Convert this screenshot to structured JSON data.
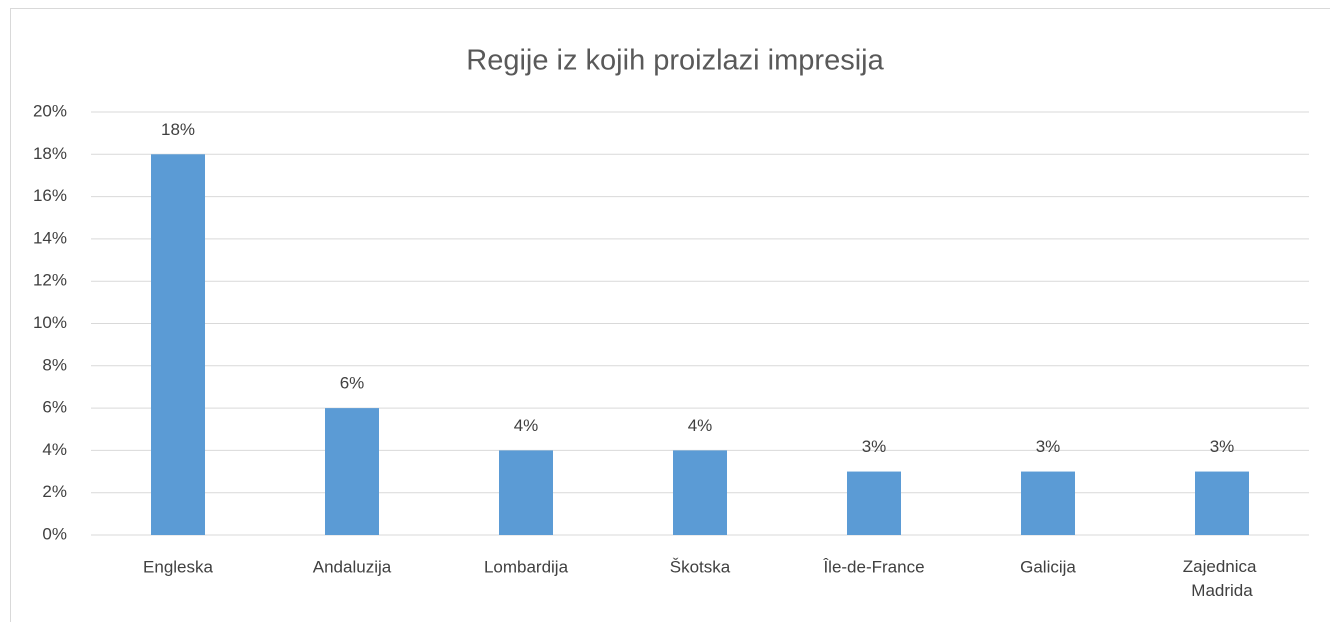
{
  "chart_data": {
    "type": "bar",
    "title": "Regije iz kojih proizlazi impresija",
    "categories": [
      "Engleska",
      "Andaluzija",
      "Lombardija",
      "Škotska",
      "Île-de-France",
      "Galicija",
      "Zajednica Madrida"
    ],
    "values": [
      18,
      6,
      4,
      4,
      3,
      3,
      3
    ],
    "value_labels": [
      "18%",
      "6%",
      "4%",
      "4%",
      "3%",
      "3%",
      "3%"
    ],
    "color": "#5b9bd5",
    "ylim": [
      0,
      20
    ],
    "yticks": [
      {
        "value": 0,
        "label": "0%"
      },
      {
        "value": 2,
        "label": "2%"
      },
      {
        "value": 4,
        "label": "4%"
      },
      {
        "value": 6,
        "label": "6%"
      },
      {
        "value": 8,
        "label": "8%"
      },
      {
        "value": 10,
        "label": "10%"
      },
      {
        "value": 12,
        "label": "12%"
      },
      {
        "value": 14,
        "label": "14%"
      },
      {
        "value": 16,
        "label": "16%"
      },
      {
        "value": 18,
        "label": "18%"
      },
      {
        "value": 20,
        "label": "20%"
      }
    ],
    "grid": true
  }
}
